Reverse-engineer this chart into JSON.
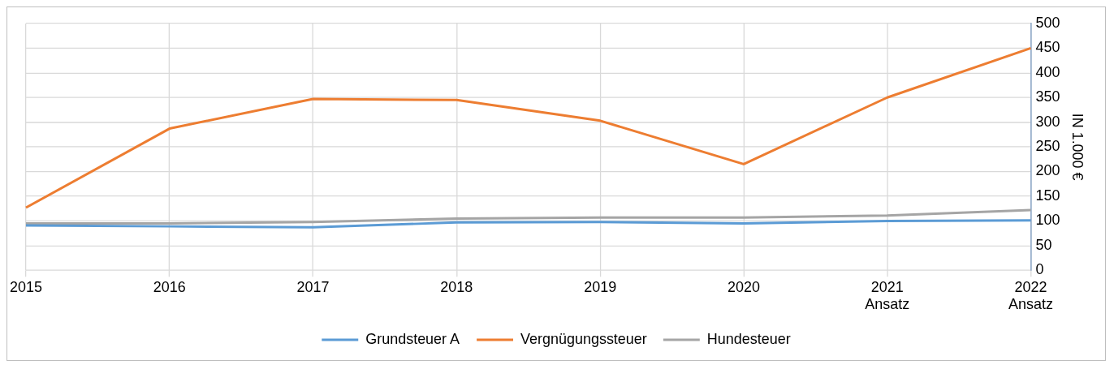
{
  "chart_data": {
    "type": "line",
    "y2label": "IN 1.000 €",
    "categories": [
      "2015",
      "2016",
      "2017",
      "2018",
      "2019",
      "2020",
      "2021 Ansatz",
      "2022 Ansatz"
    ],
    "series": [
      {
        "name": "Grundsteuer A",
        "color": "#5b9bd5",
        "axis": "y2",
        "values": [
          91,
          89,
          87,
          97,
          98,
          95,
          100,
          101
        ]
      },
      {
        "name": "Vergnügungssteuer",
        "color": "#ed7d31",
        "axis": "y2",
        "values": [
          127,
          287,
          347,
          345,
          303,
          215,
          350,
          450
        ]
      },
      {
        "name": "Hundesteuer",
        "color": "#a5a5a5",
        "axis": "y2",
        "values": [
          95,
          95,
          98,
          105,
          107,
          107,
          111,
          122
        ]
      }
    ],
    "y2lim": [
      0,
      500
    ],
    "y2ticks": [
      0,
      50,
      100,
      150,
      200,
      250,
      300,
      350,
      400,
      450,
      500
    ],
    "grid": true,
    "legend": "bottom",
    "marker": "none",
    "line_style": "solid"
  }
}
